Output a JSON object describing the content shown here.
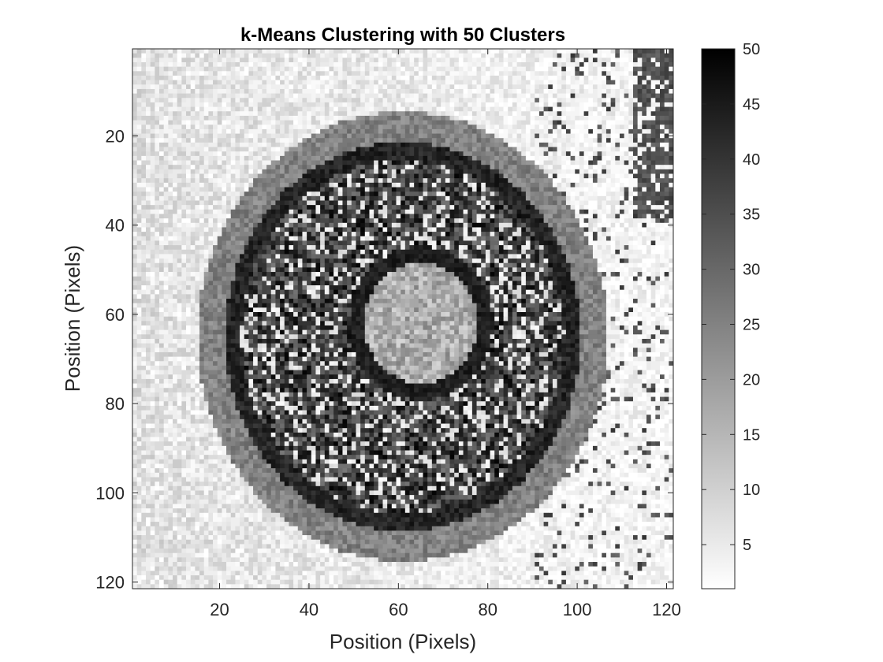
{
  "chart_data": {
    "type": "heatmap",
    "title": "k-Means Clustering with 50 Clusters",
    "xlabel": "Position (Pixels)",
    "ylabel": "Position (Pixels)",
    "xlim": [
      0.5,
      121.5
    ],
    "ylim": [
      0.5,
      121.5
    ],
    "y_direction": "reverse",
    "x_ticks": [
      "20",
      "40",
      "60",
      "80",
      "100",
      "120"
    ],
    "y_ticks": [
      "20",
      "40",
      "60",
      "80",
      "100",
      "120"
    ],
    "colormap": "gray (reversed: 1 = white, 50 = black)",
    "clim": [
      1,
      50
    ],
    "colorbar_ticks": [
      "5",
      "10",
      "15",
      "20",
      "25",
      "30",
      "35",
      "40",
      "45",
      "50"
    ],
    "grid": false,
    "grid_size": [
      121,
      121
    ],
    "regions": [
      {
        "name": "left background",
        "cluster_value": 8
      },
      {
        "name": "right background",
        "cluster_value": 3
      },
      {
        "name": "outer ring",
        "cluster_value": 25
      },
      {
        "name": "dark rim",
        "cluster_value": 47
      },
      {
        "name": "inner textured region",
        "cluster_value": 38
      },
      {
        "name": "central bright region",
        "cluster_value": 17
      }
    ]
  }
}
